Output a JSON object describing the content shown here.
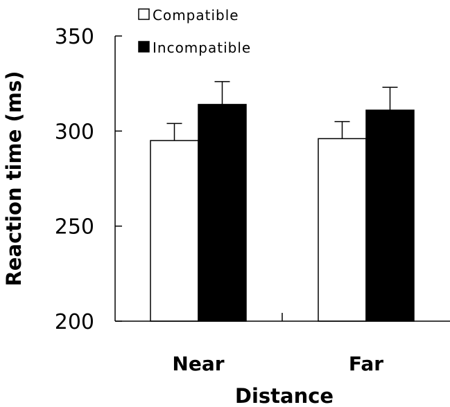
{
  "chart_data": {
    "type": "bar",
    "title": "",
    "xlabel": "Distance",
    "ylabel": "Reaction time (ms)",
    "ylim": [
      200,
      350
    ],
    "yticks": [
      200,
      250,
      300,
      350
    ],
    "categories": [
      "Near",
      "Far"
    ],
    "series": [
      {
        "name": "Compatible",
        "values": [
          295,
          296
        ],
        "errors": [
          9,
          9
        ],
        "color": "#ffffff"
      },
      {
        "name": "Incompatible",
        "values": [
          314,
          311
        ],
        "errors": [
          12,
          12
        ],
        "color": "#000000"
      }
    ],
    "legend_position": "top-left",
    "grid": false
  }
}
